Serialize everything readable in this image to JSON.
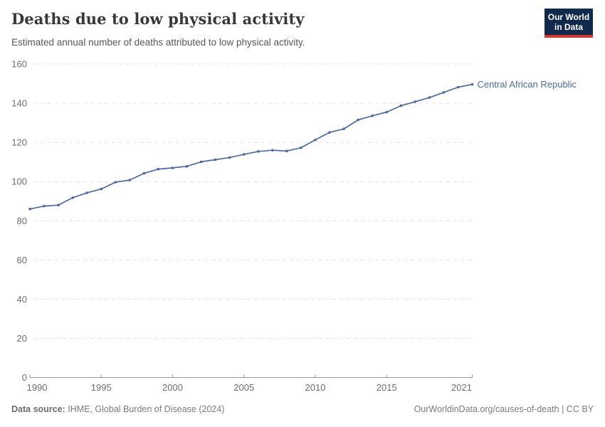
{
  "header": {
    "title": "Deaths due to low physical activity",
    "subtitle": "Estimated annual number of deaths attributed to low physical activity.",
    "logo": {
      "line1": "Our World",
      "line2": "in Data"
    }
  },
  "chart_data": {
    "type": "line",
    "title": "Deaths due to low physical activity",
    "series": [
      {
        "name": "Central African Republic",
        "x": [
          1990,
          1991,
          1992,
          1993,
          1994,
          1995,
          1996,
          1997,
          1998,
          1999,
          2000,
          2001,
          2002,
          2003,
          2004,
          2005,
          2006,
          2007,
          2008,
          2009,
          2010,
          2011,
          2012,
          2013,
          2014,
          2015,
          2016,
          2017,
          2018,
          2019,
          2020,
          2021
        ],
        "values": [
          86.0,
          87.5,
          88.0,
          91.8,
          94.3,
          96.2,
          99.7,
          100.8,
          104.2,
          106.4,
          107.0,
          107.8,
          110.1,
          111.2,
          112.3,
          113.9,
          115.4,
          116.0,
          115.6,
          117.3,
          121.3,
          125.1,
          126.9,
          131.5,
          133.6,
          135.5,
          138.7,
          140.8,
          142.9,
          145.5,
          148.2,
          149.6
        ]
      }
    ],
    "xlabel": "",
    "ylabel": "",
    "xlim": [
      1990,
      2021
    ],
    "ylim": [
      0,
      160
    ],
    "yticks": [
      0,
      20,
      40,
      60,
      80,
      100,
      120,
      140,
      160
    ],
    "xticks": [
      1990,
      1995,
      2000,
      2005,
      2010,
      2015,
      2021
    ],
    "grid": "horizontal-dashed",
    "legend_position": "end-of-line-label",
    "line_color": "#4c6a9c",
    "gridline_color": "#e2e2e2",
    "axis_line_color": "#999999",
    "tick_label_color": "#6e6e6e"
  },
  "footer": {
    "source_label": "Data source:",
    "source_text": "IHME, Global Burden of Disease (2024)",
    "credit": "OurWorldinData.org/causes-of-death | CC BY"
  },
  "colors": {
    "accent_blue": "#4c6a9c",
    "logo_navy": "#12294e",
    "logo_red": "#d6362c",
    "title_color": "#383838",
    "subtitle_color": "#575757",
    "footer_color": "#7d7d7d"
  }
}
